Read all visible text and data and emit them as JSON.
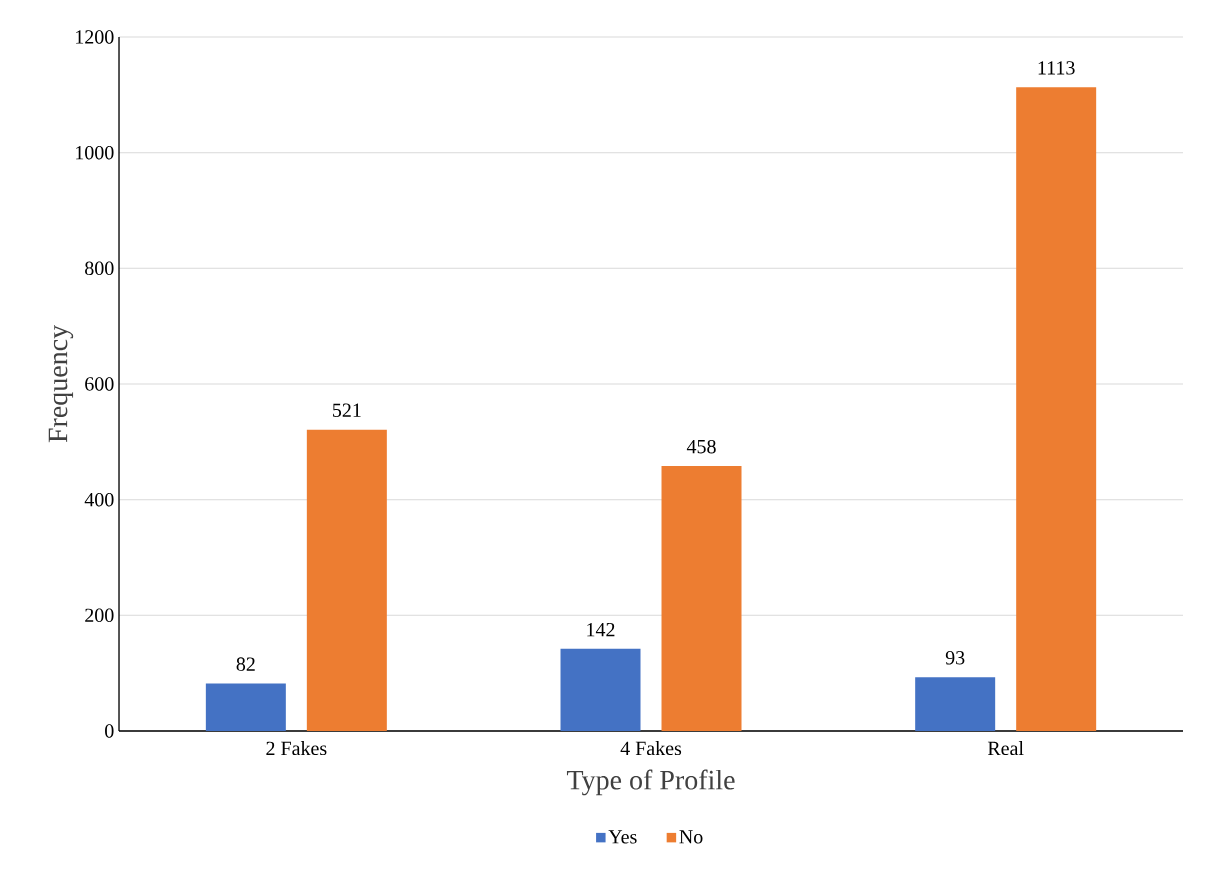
{
  "chart_data": {
    "type": "bar",
    "xlabel": "Type of Profile",
    "ylabel": "Frequency",
    "categories": [
      "2 Fakes",
      "4 Fakes",
      "Real"
    ],
    "series": [
      {
        "name": "Yes",
        "color": "#4472c4",
        "values": [
          82,
          142,
          93
        ]
      },
      {
        "name": "No",
        "color": "#ed7d31",
        "values": [
          521,
          458,
          1113
        ]
      }
    ],
    "ylim": [
      0,
      1200
    ],
    "yticks": [
      0,
      200,
      400,
      600,
      800,
      1000,
      1200
    ],
    "grid": "y",
    "legend": "bottom",
    "data_labels": true
  }
}
